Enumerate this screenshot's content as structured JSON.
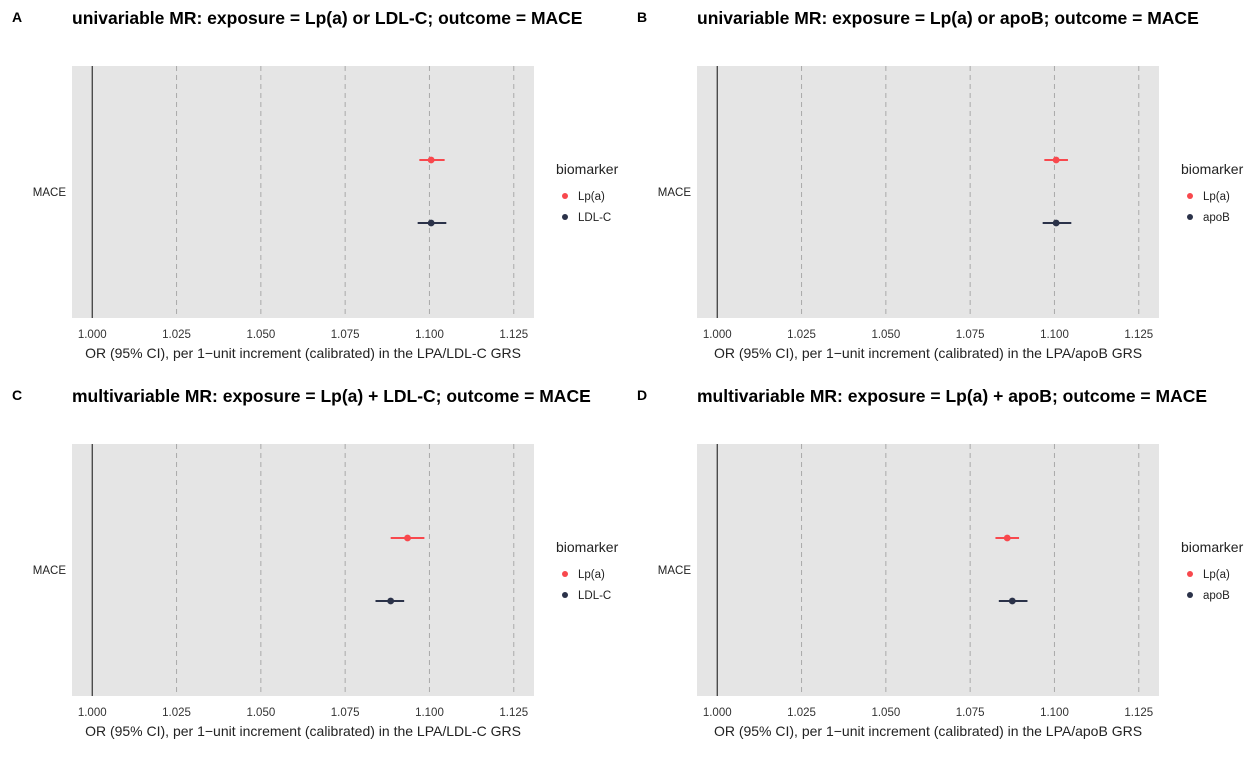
{
  "chart_data": [
    {
      "type": "scatter",
      "panel": "A",
      "title": "univariable MR: exposure = Lp(a) or LDL-C; outcome = MACE",
      "xlabel": "OR (95% CI), per 1−unit increment (calibrated) in the LPA/LDL-C GRS",
      "ylabel": "",
      "y_categories": [
        "MACE"
      ],
      "xlim": [
        0.994,
        1.131
      ],
      "xticks": [
        "1.000",
        "1.025",
        "1.050",
        "1.075",
        "1.100",
        "1.125"
      ],
      "reference_line": 1.0,
      "legend": {
        "title": "biomarker",
        "position": "right"
      },
      "grid": true,
      "series": [
        {
          "name": "Lp(a)",
          "color": "#f8484d",
          "or": 1.1005,
          "lower": 1.097,
          "upper": 1.1045
        },
        {
          "name": "LDL-C",
          "color": "#2b3249",
          "or": 1.1005,
          "lower": 1.0965,
          "upper": 1.105
        }
      ]
    },
    {
      "type": "scatter",
      "panel": "B",
      "title": "univariable MR: exposure = Lp(a) or apoB; outcome = MACE",
      "xlabel": "OR (95% CI), per 1−unit increment (calibrated) in the LPA/apoB GRS",
      "ylabel": "",
      "y_categories": [
        "MACE"
      ],
      "xlim": [
        0.994,
        1.131
      ],
      "xticks": [
        "1.000",
        "1.025",
        "1.050",
        "1.075",
        "1.100",
        "1.125"
      ],
      "reference_line": 1.0,
      "legend": {
        "title": "biomarker",
        "position": "right"
      },
      "grid": true,
      "series": [
        {
          "name": "Lp(a)",
          "color": "#f8484d",
          "or": 1.1005,
          "lower": 1.097,
          "upper": 1.104
        },
        {
          "name": "apoB",
          "color": "#2b3249",
          "or": 1.1005,
          "lower": 1.0965,
          "upper": 1.105
        }
      ]
    },
    {
      "type": "scatter",
      "panel": "C",
      "title": "multivariable MR: exposure = Lp(a) + LDL-C; outcome = MACE",
      "xlabel": "OR (95% CI), per 1−unit increment (calibrated) in the LPA/LDL-C GRS",
      "ylabel": "",
      "y_categories": [
        "MACE"
      ],
      "xlim": [
        0.994,
        1.131
      ],
      "xticks": [
        "1.000",
        "1.025",
        "1.050",
        "1.075",
        "1.100",
        "1.125"
      ],
      "reference_line": 1.0,
      "legend": {
        "title": "biomarker",
        "position": "right"
      },
      "grid": true,
      "series": [
        {
          "name": "Lp(a)",
          "color": "#f8484d",
          "or": 1.0935,
          "lower": 1.0885,
          "upper": 1.0985
        },
        {
          "name": "LDL-C",
          "color": "#2b3249",
          "or": 1.0885,
          "lower": 1.084,
          "upper": 1.0925
        }
      ]
    },
    {
      "type": "scatter",
      "panel": "D",
      "title": "multivariable MR: exposure = Lp(a) + apoB; outcome = MACE",
      "xlabel": "OR (95% CI), per 1−unit increment (calibrated) in the LPA/apoB GRS",
      "ylabel": "",
      "y_categories": [
        "MACE"
      ],
      "xlim": [
        0.994,
        1.131
      ],
      "xticks": [
        "1.000",
        "1.025",
        "1.050",
        "1.075",
        "1.100",
        "1.125"
      ],
      "reference_line": 1.0,
      "legend": {
        "title": "biomarker",
        "position": "right"
      },
      "grid": true,
      "series": [
        {
          "name": "Lp(a)",
          "color": "#f8484d",
          "or": 1.086,
          "lower": 1.0825,
          "upper": 1.0895
        },
        {
          "name": "apoB",
          "color": "#2b3249",
          "or": 1.0875,
          "lower": 1.0835,
          "upper": 1.092
        }
      ]
    }
  ]
}
